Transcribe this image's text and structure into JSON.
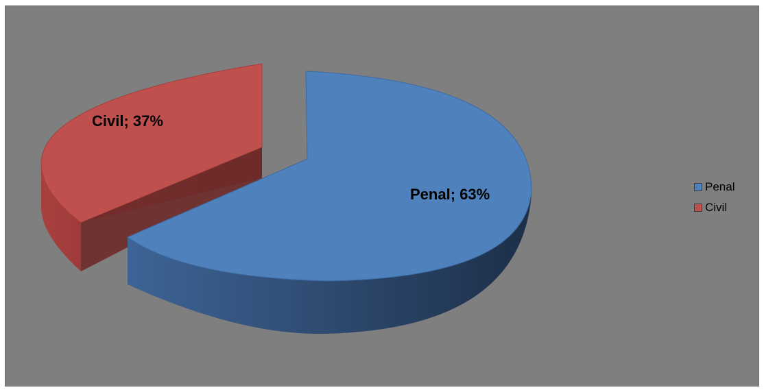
{
  "chart_data": {
    "type": "pie",
    "style": "3d-exploded",
    "categories": [
      "Penal",
      "Civil"
    ],
    "values": [
      63,
      37
    ],
    "unit": "%",
    "data_labels": [
      "Penal; 63%",
      "Civil; 37%"
    ],
    "colors": [
      "#4f81bd",
      "#c0504d"
    ],
    "legend_position": "right",
    "background": "#7f7f7f"
  }
}
